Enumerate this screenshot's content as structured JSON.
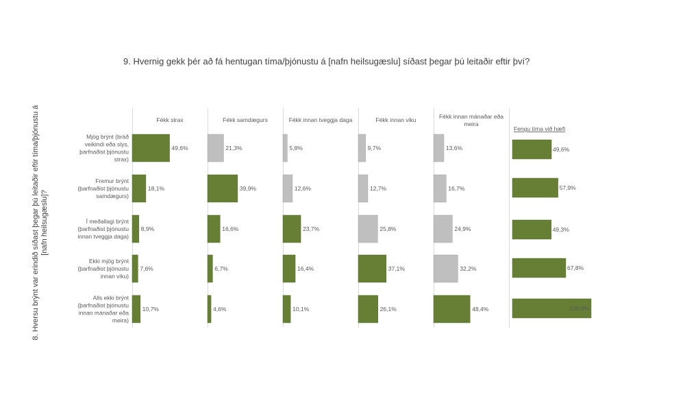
{
  "chart_data": {
    "type": "bar",
    "orientation": "horizontal",
    "layout": "small-multiples",
    "title": "9. Hvernig gekk þér að fá hentugan tíma/þjónustu á [nafn heilsugæslu] síðast þegar þú leitaðir eftir því?",
    "ylabel_lines": [
      "8. Hversu brýnt var erindið síðast þegar þú leitaðir eftir tíma/þjónustu á",
      "[nafn heilsugæslu]?"
    ],
    "rows": [
      {
        "lines": [
          "Mjög brýnt (bráð",
          "veikindi eða slys,",
          "þarfnaðist þjónustu",
          "strax)"
        ]
      },
      {
        "lines": [
          "Fremur brýnt",
          "(þarfnaðist þjónustu",
          "samdægurs)"
        ]
      },
      {
        "lines": [
          "Í meðallagi brýnt",
          "(þarfnaðist þjónustu",
          "innan tveggja daga)"
        ]
      },
      {
        "lines": [
          "Ekki mjög brýnt",
          "(þarfnaðist þjónustu",
          "innan viku)"
        ]
      },
      {
        "lines": [
          "Alls ekki brýnt",
          "(þarfnaðist þjónustu",
          "innan mánaðar eða",
          "meira)"
        ]
      }
    ],
    "series": [
      {
        "name_lines": [
          "Fékk strax"
        ],
        "values": [
          49.6,
          18.1,
          8.9,
          7.6,
          10.7
        ],
        "labels": [
          "49,6%",
          "18,1%",
          "8,9%",
          "7,6%",
          "10,7%"
        ],
        "highlight": [
          true,
          true,
          true,
          true,
          true
        ]
      },
      {
        "name_lines": [
          "Fékk samdægurs"
        ],
        "values": [
          21.3,
          39.9,
          16.6,
          6.7,
          4.6
        ],
        "labels": [
          "21,3%",
          "39,9%",
          "16,6%",
          "6,7%",
          "4,6%"
        ],
        "highlight": [
          false,
          true,
          true,
          true,
          true
        ]
      },
      {
        "name_lines": [
          "Fékk innan tveggja daga"
        ],
        "values": [
          5.8,
          12.6,
          23.7,
          16.4,
          10.1
        ],
        "labels": [
          "5,8%",
          "12,6%",
          "23,7%",
          "16,4%",
          "10,1%"
        ],
        "highlight": [
          false,
          false,
          true,
          true,
          true
        ]
      },
      {
        "name_lines": [
          "Fékk innan viku"
        ],
        "values": [
          9.7,
          12.7,
          25.8,
          37.1,
          26.1
        ],
        "labels": [
          "9,7%",
          "12,7%",
          "25,8%",
          "37,1%",
          "26,1%"
        ],
        "highlight": [
          false,
          false,
          false,
          true,
          true
        ]
      },
      {
        "name_lines": [
          "Fékk innan mánaðar eða",
          "meira"
        ],
        "values": [
          13.6,
          16.7,
          24.9,
          32.2,
          48.4
        ],
        "labels": [
          "13,6%",
          "16,7%",
          "24,9%",
          "32,2%",
          "48,4%"
        ],
        "highlight": [
          false,
          false,
          false,
          false,
          true
        ]
      }
    ],
    "summary": {
      "name": "Fengu tíma við hæfi",
      "values": [
        49.6,
        57.9,
        49.3,
        67.8,
        100.0
      ],
      "labels": [
        "49,6%",
        "57,9%",
        "49,3%",
        "67,8%",
        "100,0%"
      ]
    },
    "xlim": [
      0,
      100
    ],
    "colors": {
      "highlight": "#667f35",
      "highlight_border": "#56702a",
      "muted": "#bfbfbf",
      "muted_border": "#a6a6a6",
      "divider": "#d9d9d9"
    }
  }
}
